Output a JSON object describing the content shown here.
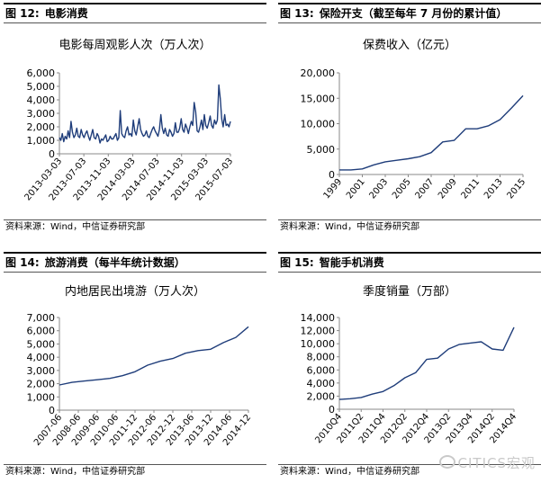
{
  "panels": [
    {
      "fig_label": "图 12:",
      "fig_title": "电影消费",
      "chart_title": "电影每周观影人次（万人次）",
      "source": "资料来源：Wind，中信证券研究部"
    },
    {
      "fig_label": "图 13:",
      "fig_title": "保险开支（截至每年 7 月份的累计值）",
      "chart_title": "保费收入（亿元）",
      "source": "资料来源：Wind，中信证券研究部"
    },
    {
      "fig_label": "图 14:",
      "fig_title": "旅游消费（每半年统计数据）",
      "chart_title": "内地居民出境游（万人次）",
      "source": "资料来源：Wind，中信证券研究部"
    },
    {
      "fig_label": "图 15:",
      "fig_title": "智能手机消费",
      "chart_title": "季度销量（万部）",
      "source": "资料来源：Wind，中信证券研究部"
    }
  ],
  "watermark": {
    "text": "CITICS宏观",
    "icon": "wechat-icon"
  },
  "colors": {
    "line": "#1f3d7a",
    "axis": "#8a8a8a",
    "header_rule": "#111111"
  },
  "chart_data": [
    {
      "type": "line",
      "title": "电影每周观影人次（万人次）",
      "y_ticks": [
        0,
        1000,
        2000,
        3000,
        4000,
        5000,
        6000
      ],
      "y_tick_labels": [
        "0",
        "1,000",
        "2,000",
        "3,000",
        "4,000",
        "5,000",
        "6,000"
      ],
      "ylim": [
        0,
        6000
      ],
      "x_tick_labels": [
        "2013-03-03",
        "2013-07-03",
        "2013-11-03",
        "2014-03-03",
        "2014-07-03",
        "2014-11-03",
        "2015-03-03",
        "2015-07-03"
      ],
      "grid": false,
      "legend": "none",
      "values": [
        1200,
        1000,
        1500,
        900,
        1300,
        1100,
        1700,
        1200,
        2400,
        1600,
        1200,
        1400,
        1900,
        1300,
        1200,
        1800,
        1400,
        1200,
        1500,
        1700,
        1300,
        1000,
        1400,
        1800,
        1200,
        1100,
        1500,
        1300,
        800,
        1100,
        1000,
        1200,
        1400,
        900,
        1000,
        1300,
        1100,
        1100,
        1300,
        1500,
        1000,
        1200,
        3200,
        1500,
        1300,
        1200,
        1700,
        2000,
        1400,
        1500,
        1300,
        2500,
        1700,
        1400,
        2000,
        2600,
        1800,
        1500,
        1300,
        1400,
        1700,
        1300,
        1200,
        1500,
        1800,
        2000,
        1700,
        1500,
        1300,
        1800,
        2900,
        1900,
        1500,
        1900,
        1400,
        1300,
        1800,
        1600,
        1300,
        1500,
        2300,
        1600,
        1600,
        1900,
        2600,
        1800,
        1600,
        2200,
        1900,
        1500,
        2000,
        2400,
        2100,
        3800,
        3100,
        1700,
        1600,
        2000,
        2500,
        1800,
        2900,
        2100,
        1900,
        2300,
        2800,
        2100,
        1900,
        2500,
        2200,
        2500,
        5100,
        4100,
        2600,
        2000,
        2900,
        2100,
        2200,
        2000,
        2400
      ]
    },
    {
      "type": "line",
      "title": "保费收入（亿元）",
      "x": [
        1999,
        2000,
        2001,
        2002,
        2003,
        2004,
        2005,
        2006,
        2007,
        2008,
        2009,
        2010,
        2011,
        2012,
        2013,
        2014,
        2015
      ],
      "values": [
        900,
        900,
        1100,
        1900,
        2500,
        2800,
        3100,
        3500,
        4300,
        6400,
        6700,
        9000,
        9000,
        9600,
        10800,
        13100,
        15500
      ],
      "y_ticks": [
        0,
        5000,
        10000,
        15000,
        20000
      ],
      "y_tick_labels": [
        "0",
        "5,000",
        "10,000",
        "15,000",
        "20,000"
      ],
      "ylim": [
        0,
        20000
      ],
      "x_tick_labels": [
        "1999",
        "2001",
        "2003",
        "2005",
        "2007",
        "2009",
        "2011",
        "2013",
        "2015"
      ],
      "grid": false,
      "legend": "none"
    },
    {
      "type": "line",
      "title": "内地居民出境游（万人次）",
      "x": [
        "2007-06",
        "2007-12",
        "2008-06",
        "2008-12",
        "2009-06",
        "2009-12",
        "2010-06",
        "2010-12",
        "2011-06",
        "2011-12",
        "2012-06",
        "2012-12",
        "2013-06",
        "2013-12",
        "2014-06",
        "2014-12"
      ],
      "values": [
        1900,
        2100,
        2200,
        2300,
        2400,
        2600,
        2900,
        3400,
        3700,
        3900,
        4300,
        4500,
        4600,
        5100,
        5500,
        6300
      ],
      "y_ticks": [
        0,
        1000,
        2000,
        3000,
        4000,
        5000,
        6000,
        7000
      ],
      "y_tick_labels": [
        "0",
        "1,000",
        "2,000",
        "3,000",
        "4,000",
        "5,000",
        "6,000",
        "7,000"
      ],
      "ylim": [
        0,
        7000
      ],
      "x_tick_labels": [
        "2007-06",
        "2008-06",
        "2009-06",
        "2010-06",
        "2011-12",
        "2012-06",
        "2012-12",
        "2013-06",
        "2013-12",
        "2014-06",
        "2014-12"
      ],
      "grid": false,
      "legend": "none"
    },
    {
      "type": "line",
      "title": "季度销量（万部）",
      "x": [
        "2010Q4",
        "2011Q1",
        "2011Q2",
        "2011Q3",
        "2011Q4",
        "2012Q1",
        "2012Q2",
        "2012Q3",
        "2012Q4",
        "2013Q1",
        "2013Q2",
        "2013Q3",
        "2013Q4",
        "2014Q1",
        "2014Q2",
        "2014Q3",
        "2014Q4"
      ],
      "values": [
        1500,
        1600,
        1800,
        2300,
        2700,
        3600,
        4800,
        5600,
        7600,
        7800,
        9200,
        9900,
        10100,
        10300,
        9200,
        9000,
        12500
      ],
      "y_ticks": [
        0,
        2000,
        4000,
        6000,
        8000,
        10000,
        12000,
        14000
      ],
      "y_tick_labels": [
        "0",
        "2,000",
        "4,000",
        "6,000",
        "8,000",
        "10,000",
        "12,000",
        "14,000"
      ],
      "ylim": [
        0,
        14000
      ],
      "x_tick_labels": [
        "2010Q4",
        "2011Q2",
        "2011Q4",
        "2012Q2",
        "2012Q4",
        "2013Q2",
        "2013Q4",
        "2014Q2",
        "2014Q4"
      ],
      "grid": false,
      "legend": "none"
    }
  ]
}
